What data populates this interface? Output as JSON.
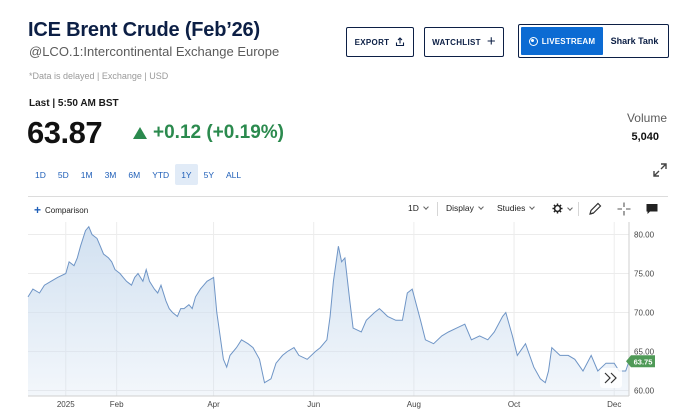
{
  "header": {
    "title": "ICE Brent Crude (Feb’26)",
    "subtitle": "@LCO.1:Intercontinental Exchange Europe",
    "data_note": "*Data is delayed | Exchange | USD"
  },
  "actions": {
    "export_label": "EXPORT",
    "watchlist_label": "WATCHLIST",
    "livestream_label": "LIVESTREAM",
    "livestream_show": "Shark Tank"
  },
  "quote": {
    "last_label": "Last | 5:50 AM BST",
    "price": "63.87",
    "change": "+0.12 (+0.19%)",
    "direction": "up",
    "up_color": "#2b8a4e"
  },
  "volume": {
    "label": "Volume",
    "value": "5,040"
  },
  "ranges": {
    "items": [
      "1D",
      "5D",
      "1M",
      "3M",
      "6M",
      "YTD",
      "1Y",
      "5Y",
      "ALL"
    ],
    "active": "1Y"
  },
  "toolbar": {
    "comparison_label": "Comparison",
    "interval_label": "1D",
    "display_label": "Display",
    "studies_label": "Studies",
    "icons": [
      "settings-icon",
      "draw-pencil-icon",
      "crosshair-icon",
      "comment-icon"
    ]
  },
  "chart_data": {
    "type": "area",
    "title": "",
    "xlabel": "",
    "ylabel": "",
    "ylim": [
      59.3,
      81.6
    ],
    "yticks": [
      "80.00",
      "75.00",
      "70.00",
      "65.00",
      "60.00"
    ],
    "xticks": [
      "2025",
      "Feb",
      "Apr",
      "Jun",
      "Aug",
      "Oct",
      "Dec"
    ],
    "last_value_label": "63.75",
    "grid": true,
    "line_color": "#6f95c6",
    "fill_color": "#cfdff0",
    "series": [
      {
        "x": [
          "2024-12-09",
          "2024-12-12",
          "2024-12-16",
          "2024-12-19",
          "2024-12-23",
          "2024-12-27",
          "2025-01-01",
          "2025-01-03",
          "2025-01-06",
          "2025-01-08",
          "2025-01-10",
          "2025-01-13",
          "2025-01-15",
          "2025-01-17",
          "2025-01-20",
          "2025-01-22",
          "2025-01-24",
          "2025-01-27",
          "2025-01-29",
          "2025-01-31",
          "2025-02-03",
          "2025-02-05",
          "2025-02-07",
          "2025-02-10",
          "2025-02-12",
          "2025-02-14",
          "2025-02-17",
          "2025-02-19",
          "2025-02-21",
          "2025-02-24",
          "2025-02-26",
          "2025-02-28",
          "2025-03-03",
          "2025-03-05",
          "2025-03-07",
          "2025-03-10",
          "2025-03-12",
          "2025-03-14",
          "2025-03-17",
          "2025-03-19",
          "2025-03-21",
          "2025-03-24",
          "2025-03-26",
          "2025-03-28",
          "2025-04-01",
          "2025-04-03",
          "2025-04-07",
          "2025-04-09",
          "2025-04-11",
          "2025-04-15",
          "2025-04-18",
          "2025-04-22",
          "2025-04-25",
          "2025-04-29",
          "2025-05-02",
          "2025-05-06",
          "2025-05-09",
          "2025-05-13",
          "2025-05-16",
          "2025-05-20",
          "2025-05-23",
          "2025-05-28",
          "2025-06-02",
          "2025-06-05",
          "2025-06-09",
          "2025-06-11",
          "2025-06-13",
          "2025-06-16",
          "2025-06-18",
          "2025-06-20",
          "2025-06-23",
          "2025-06-25",
          "2025-06-30",
          "2025-07-03",
          "2025-07-08",
          "2025-07-11",
          "2025-07-16",
          "2025-07-21",
          "2025-07-25",
          "2025-07-28",
          "2025-07-31",
          "2025-08-05",
          "2025-08-08",
          "2025-08-13",
          "2025-08-18",
          "2025-08-22",
          "2025-08-27",
          "2025-09-01",
          "2025-09-05",
          "2025-09-10",
          "2025-09-15",
          "2025-09-19",
          "2025-09-24",
          "2025-09-26",
          "2025-09-30",
          "2025-10-03",
          "2025-10-08",
          "2025-10-13",
          "2025-10-17",
          "2025-10-20",
          "2025-10-22",
          "2025-10-24",
          "2025-10-29",
          "2025-11-03",
          "2025-11-07",
          "2025-11-12",
          "2025-11-17",
          "2025-11-21",
          "2025-11-26",
          "2025-12-01",
          "2025-12-04",
          "2025-12-08",
          "2025-12-10"
        ],
        "y": [
          72.0,
          73.0,
          72.5,
          73.5,
          74.0,
          74.5,
          75.0,
          76.5,
          76.0,
          77.0,
          78.5,
          80.5,
          81.0,
          80.0,
          79.5,
          78.5,
          77.5,
          77.0,
          76.5,
          75.5,
          75.0,
          74.5,
          74.0,
          73.5,
          74.5,
          75.0,
          74.0,
          75.5,
          74.0,
          73.0,
          72.5,
          73.5,
          71.5,
          70.5,
          70.0,
          69.5,
          70.5,
          70.5,
          71.0,
          70.5,
          72.0,
          73.0,
          73.5,
          74.0,
          74.5,
          70.0,
          64.0,
          63.0,
          64.5,
          65.5,
          66.5,
          66.0,
          65.5,
          64.0,
          61.0,
          61.5,
          63.5,
          64.5,
          65.0,
          65.5,
          64.5,
          64.0,
          65.0,
          65.5,
          66.5,
          69.5,
          74.0,
          78.5,
          76.5,
          77.0,
          71.5,
          68.0,
          67.5,
          69.0,
          70.0,
          70.5,
          69.5,
          69.0,
          69.0,
          72.5,
          73.0,
          69.0,
          66.5,
          66.0,
          67.0,
          67.5,
          68.0,
          68.5,
          66.5,
          67.0,
          66.5,
          67.5,
          69.5,
          70.0,
          67.0,
          64.5,
          66.0,
          63.0,
          61.5,
          61.0,
          62.5,
          65.5,
          64.5,
          64.5,
          64.0,
          62.5,
          64.5,
          62.5,
          63.5,
          63.5,
          62.5,
          62.5,
          63.75
        ]
      }
    ]
  }
}
